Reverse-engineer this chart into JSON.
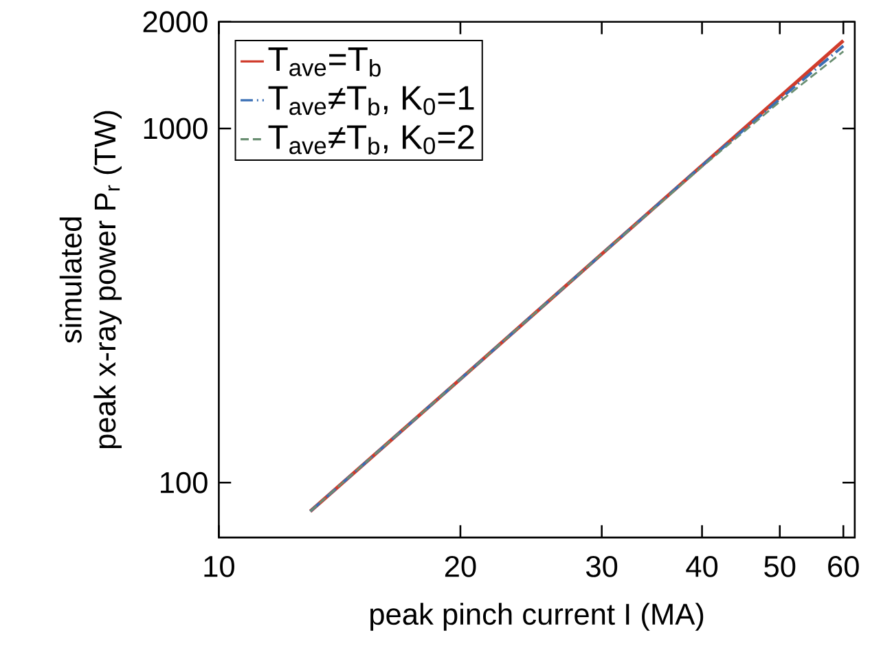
{
  "chart_data": {
    "type": "line",
    "xlabel": "peak pinch current I (MA)",
    "ylabel": "simulated\npeak x-ray power P$_{r}$ (TW)",
    "log": "xy",
    "xlim": [
      10,
      62
    ],
    "ylim": [
      70,
      2000
    ],
    "xticks": [
      10,
      20,
      30,
      40,
      50,
      60
    ],
    "yticks": [
      100,
      1000,
      2000
    ],
    "legend": "top left",
    "grid": false,
    "marker": "none",
    "series": [
      {
        "name": "T$_{ave}$=T$_{b}$",
        "color": "#d03c2c",
        "line_style": "solid",
        "x": [
          13,
          20,
          30,
          40,
          50,
          60
        ],
        "values": [
          83,
          196,
          442,
          786,
          1228,
          1770
        ]
      },
      {
        "name": "T$_{ave}$≠T$_{b}$, K$_{0}$=1",
        "color": "#3a6fb5",
        "line_style": "dashdot",
        "x": [
          13,
          20,
          30,
          40,
          50,
          60
        ],
        "values": [
          83,
          196,
          442,
          786,
          1210,
          1710
        ]
      },
      {
        "name": "T$_{ave}$≠T$_{b}$, K$_{0}$=2",
        "color": "#6a8f72",
        "line_style": "dashed",
        "x": [
          13,
          20,
          30,
          40,
          50,
          60
        ],
        "values": [
          83,
          196,
          442,
          780,
          1190,
          1650
        ]
      }
    ]
  }
}
